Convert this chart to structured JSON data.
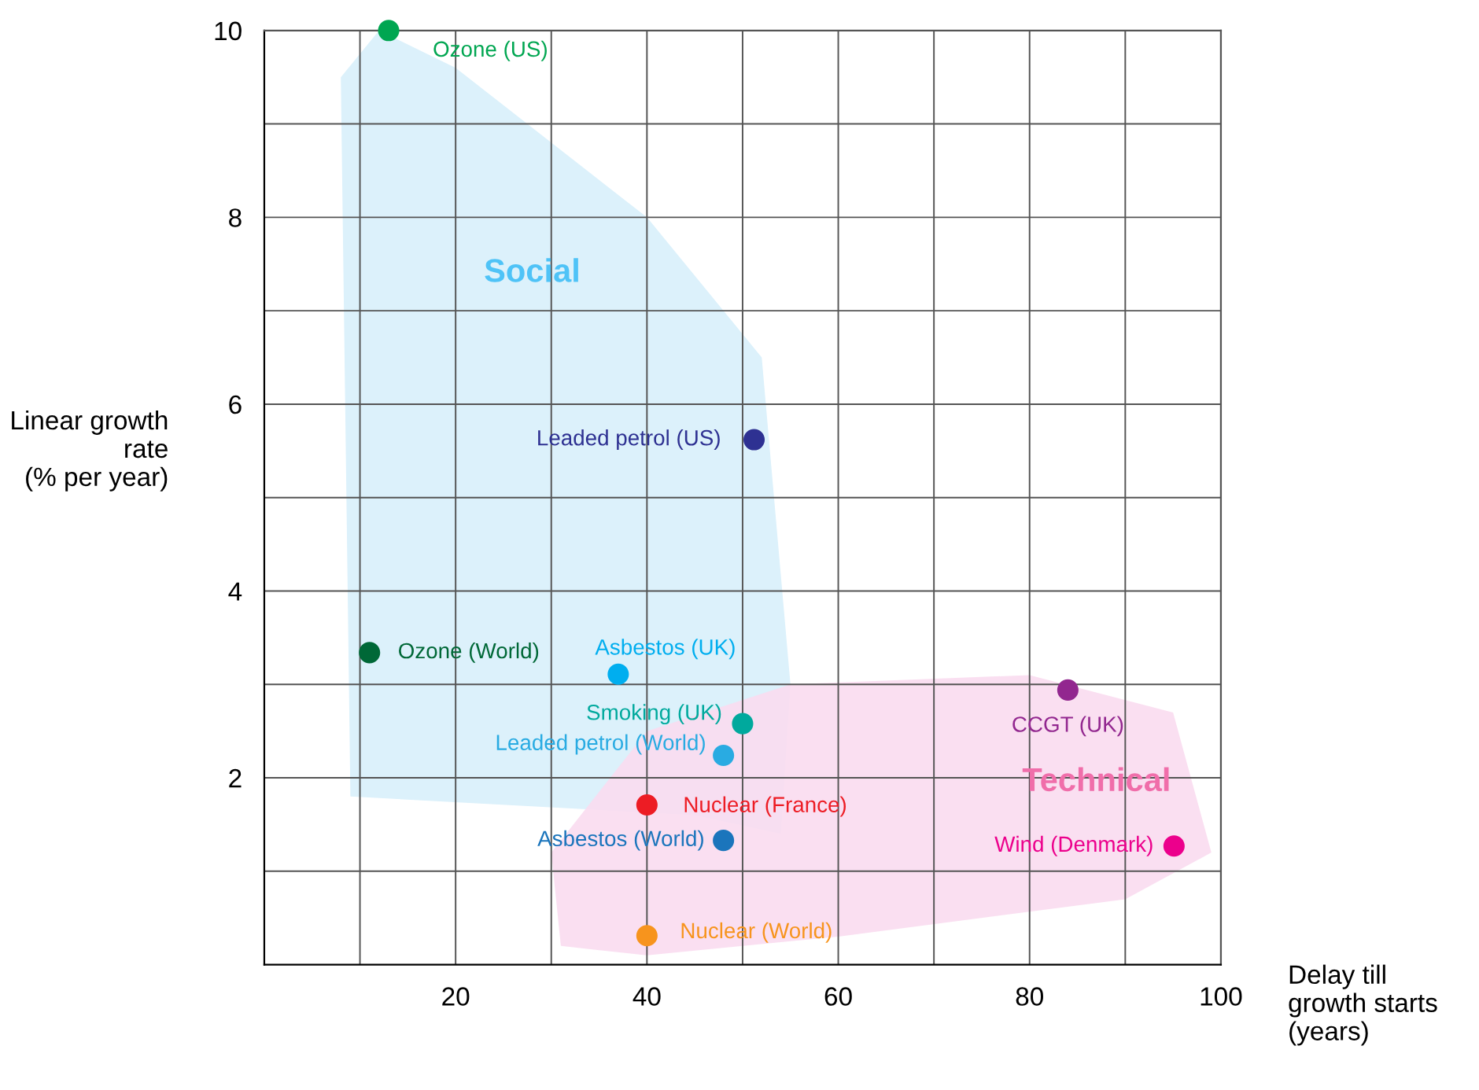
{
  "chart_data": {
    "type": "scatter",
    "xlabel": "Delay till\ngrowth starts\n(years)",
    "ylabel": "Linear growth\nrate\n(% per year)",
    "xlim": [
      0,
      100
    ],
    "ylim": [
      0,
      10
    ],
    "xticks": [
      {
        "value": 10,
        "label": null
      },
      20,
      {
        "value": 30,
        "label": null
      },
      40,
      {
        "value": 50,
        "label": null
      },
      60,
      {
        "value": 70,
        "label": null
      },
      80,
      {
        "value": 90,
        "label": null
      },
      100
    ],
    "yticks": [
      {
        "value": 1,
        "label": null
      },
      2,
      {
        "value": 3,
        "label": null
      },
      4,
      {
        "value": 5,
        "label": null
      },
      6,
      {
        "value": 7,
        "label": null
      },
      8,
      {
        "value": 9,
        "label": null
      },
      10
    ],
    "grid": true,
    "legend": false,
    "series": [
      {
        "name": "Ozone (US)",
        "color": "#00a651",
        "x": [
          13.0
        ],
        "values": [
          10.0
        ]
      },
      {
        "name": "Leaded petrol (US)",
        "color": "#2e3192",
        "x": [
          51.2
        ],
        "values": [
          5.62
        ]
      },
      {
        "name": "Ozone (World)",
        "color": "#006837",
        "x": [
          11.0
        ],
        "values": [
          3.34
        ]
      },
      {
        "name": "Asbestos (UK)",
        "color": "#00aeef",
        "x": [
          37.0
        ],
        "values": [
          3.11
        ]
      },
      {
        "name": "Smoking (UK)",
        "color": "#00a99d",
        "x": [
          50.0
        ],
        "values": [
          2.58
        ]
      },
      {
        "name": "Leaded petrol (World)",
        "color": "#29abe2",
        "x": [
          48.0
        ],
        "values": [
          2.24
        ]
      },
      {
        "name": "Nuclear (France)",
        "color": "#ed1c24",
        "x": [
          40.0
        ],
        "values": [
          1.71
        ]
      },
      {
        "name": "Asbestos (World)",
        "color": "#1b75bc",
        "x": [
          48.0
        ],
        "values": [
          1.33
        ]
      },
      {
        "name": "Nuclear (World)",
        "color": "#f7941d",
        "x": [
          40.0
        ],
        "values": [
          0.31
        ]
      },
      {
        "name": "CCGT (UK)",
        "color": "#92278f",
        "x": [
          84.0
        ],
        "values": [
          2.94
        ]
      },
      {
        "name": "Wind (Denmark)",
        "color": "#ec008c",
        "x": [
          95.1
        ],
        "values": [
          1.27
        ]
      }
    ],
    "annotations": [
      "Social",
      "Technical"
    ]
  }
}
